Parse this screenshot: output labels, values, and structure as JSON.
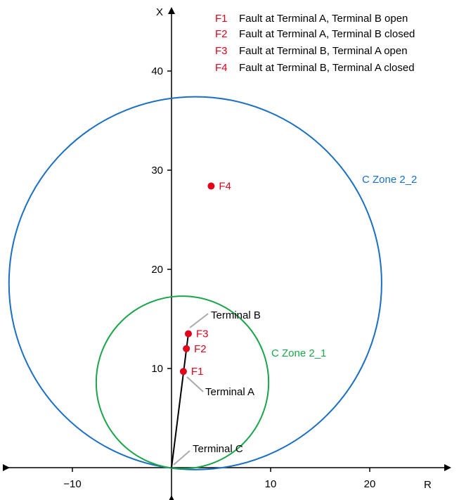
{
  "axes": {
    "x_label": "R",
    "y_label": "X",
    "x_ticks": [
      {
        "value": -10,
        "label": "−10"
      },
      {
        "value": 10,
        "label": "10"
      },
      {
        "value": 20,
        "label": "20"
      }
    ],
    "y_ticks": [
      {
        "value": 10,
        "label": "10"
      },
      {
        "value": 20,
        "label": "20"
      },
      {
        "value": 30,
        "label": "30"
      },
      {
        "value": 40,
        "label": "40"
      }
    ],
    "x_range": [
      -16,
      27
    ],
    "y_range": [
      -0.5,
      46
    ]
  },
  "legend": [
    {
      "code": "F1",
      "text": "Fault at Terminal A, Terminal B open"
    },
    {
      "code": "F2",
      "text": "Fault at Terminal A, Terminal B closed"
    },
    {
      "code": "F3",
      "text": "Fault at Terminal B, Terminal A open"
    },
    {
      "code": "F4",
      "text": "Fault at Terminal B, Terminal A closed"
    }
  ],
  "zones": [
    {
      "label": "C Zone 2_2",
      "center": {
        "r": 2.4,
        "x": 18.6
      },
      "radius": 18.8,
      "color": "#1a6fc4"
    },
    {
      "label": "C Zone 2_1",
      "center": {
        "r": 1.1,
        "x": 8.6
      },
      "radius": 8.7,
      "color": "#19a64a"
    }
  ],
  "terminals": [
    {
      "label": "Terminal C",
      "r": 0,
      "x": 0
    },
    {
      "label": "Terminal A",
      "r": 1.2,
      "x": 9.7
    },
    {
      "label": "Terminal B",
      "r": 1.7,
      "x": 13.5
    }
  ],
  "faults": [
    {
      "label": "F1",
      "r": 1.2,
      "x": 9.7
    },
    {
      "label": "F2",
      "r": 1.5,
      "x": 12.0
    },
    {
      "label": "F3",
      "r": 1.7,
      "x": 13.5
    },
    {
      "label": "F4",
      "r": 4.0,
      "x": 28.4
    }
  ],
  "colors": {
    "fault": "#e2001a",
    "zone_outer": "#1a6fc4",
    "zone_inner": "#19a64a",
    "axis": "#000000"
  }
}
